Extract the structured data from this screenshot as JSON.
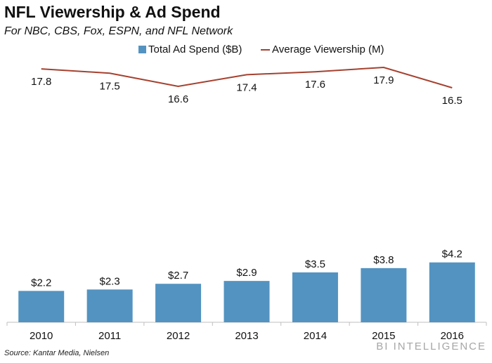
{
  "chart_data": {
    "type": "bar+line",
    "title": "NFL Viewership & Ad Spend",
    "subtitle": "For NBC, CBS, Fox, ESPN, and NFL Network",
    "categories": [
      "2010",
      "2011",
      "2012",
      "2013",
      "2014",
      "2015",
      "2016"
    ],
    "series": [
      {
        "name": "Total Ad Spend ($B)",
        "type": "bar",
        "color": "#5393c1",
        "values": [
          2.2,
          2.3,
          2.7,
          2.9,
          3.5,
          3.8,
          4.2
        ],
        "labels": [
          "$2.2",
          "$2.3",
          "$2.7",
          "$2.9",
          "$3.5",
          "$3.8",
          "$4.2"
        ]
      },
      {
        "name": "Average Viewership (M)",
        "type": "line",
        "color": "#a5412f",
        "values": [
          17.8,
          17.5,
          16.6,
          17.4,
          17.6,
          17.9,
          16.5
        ],
        "labels": [
          "17.8",
          "17.5",
          "16.6",
          "17.4",
          "17.6",
          "17.9",
          "16.5"
        ]
      }
    ],
    "legend_position": "top",
    "grid": false,
    "xlabel": "",
    "ylabel": ""
  },
  "footer": {
    "source": "Source: Kantar Media, Nielsen",
    "brand": "BI INTELLIGENCE"
  }
}
